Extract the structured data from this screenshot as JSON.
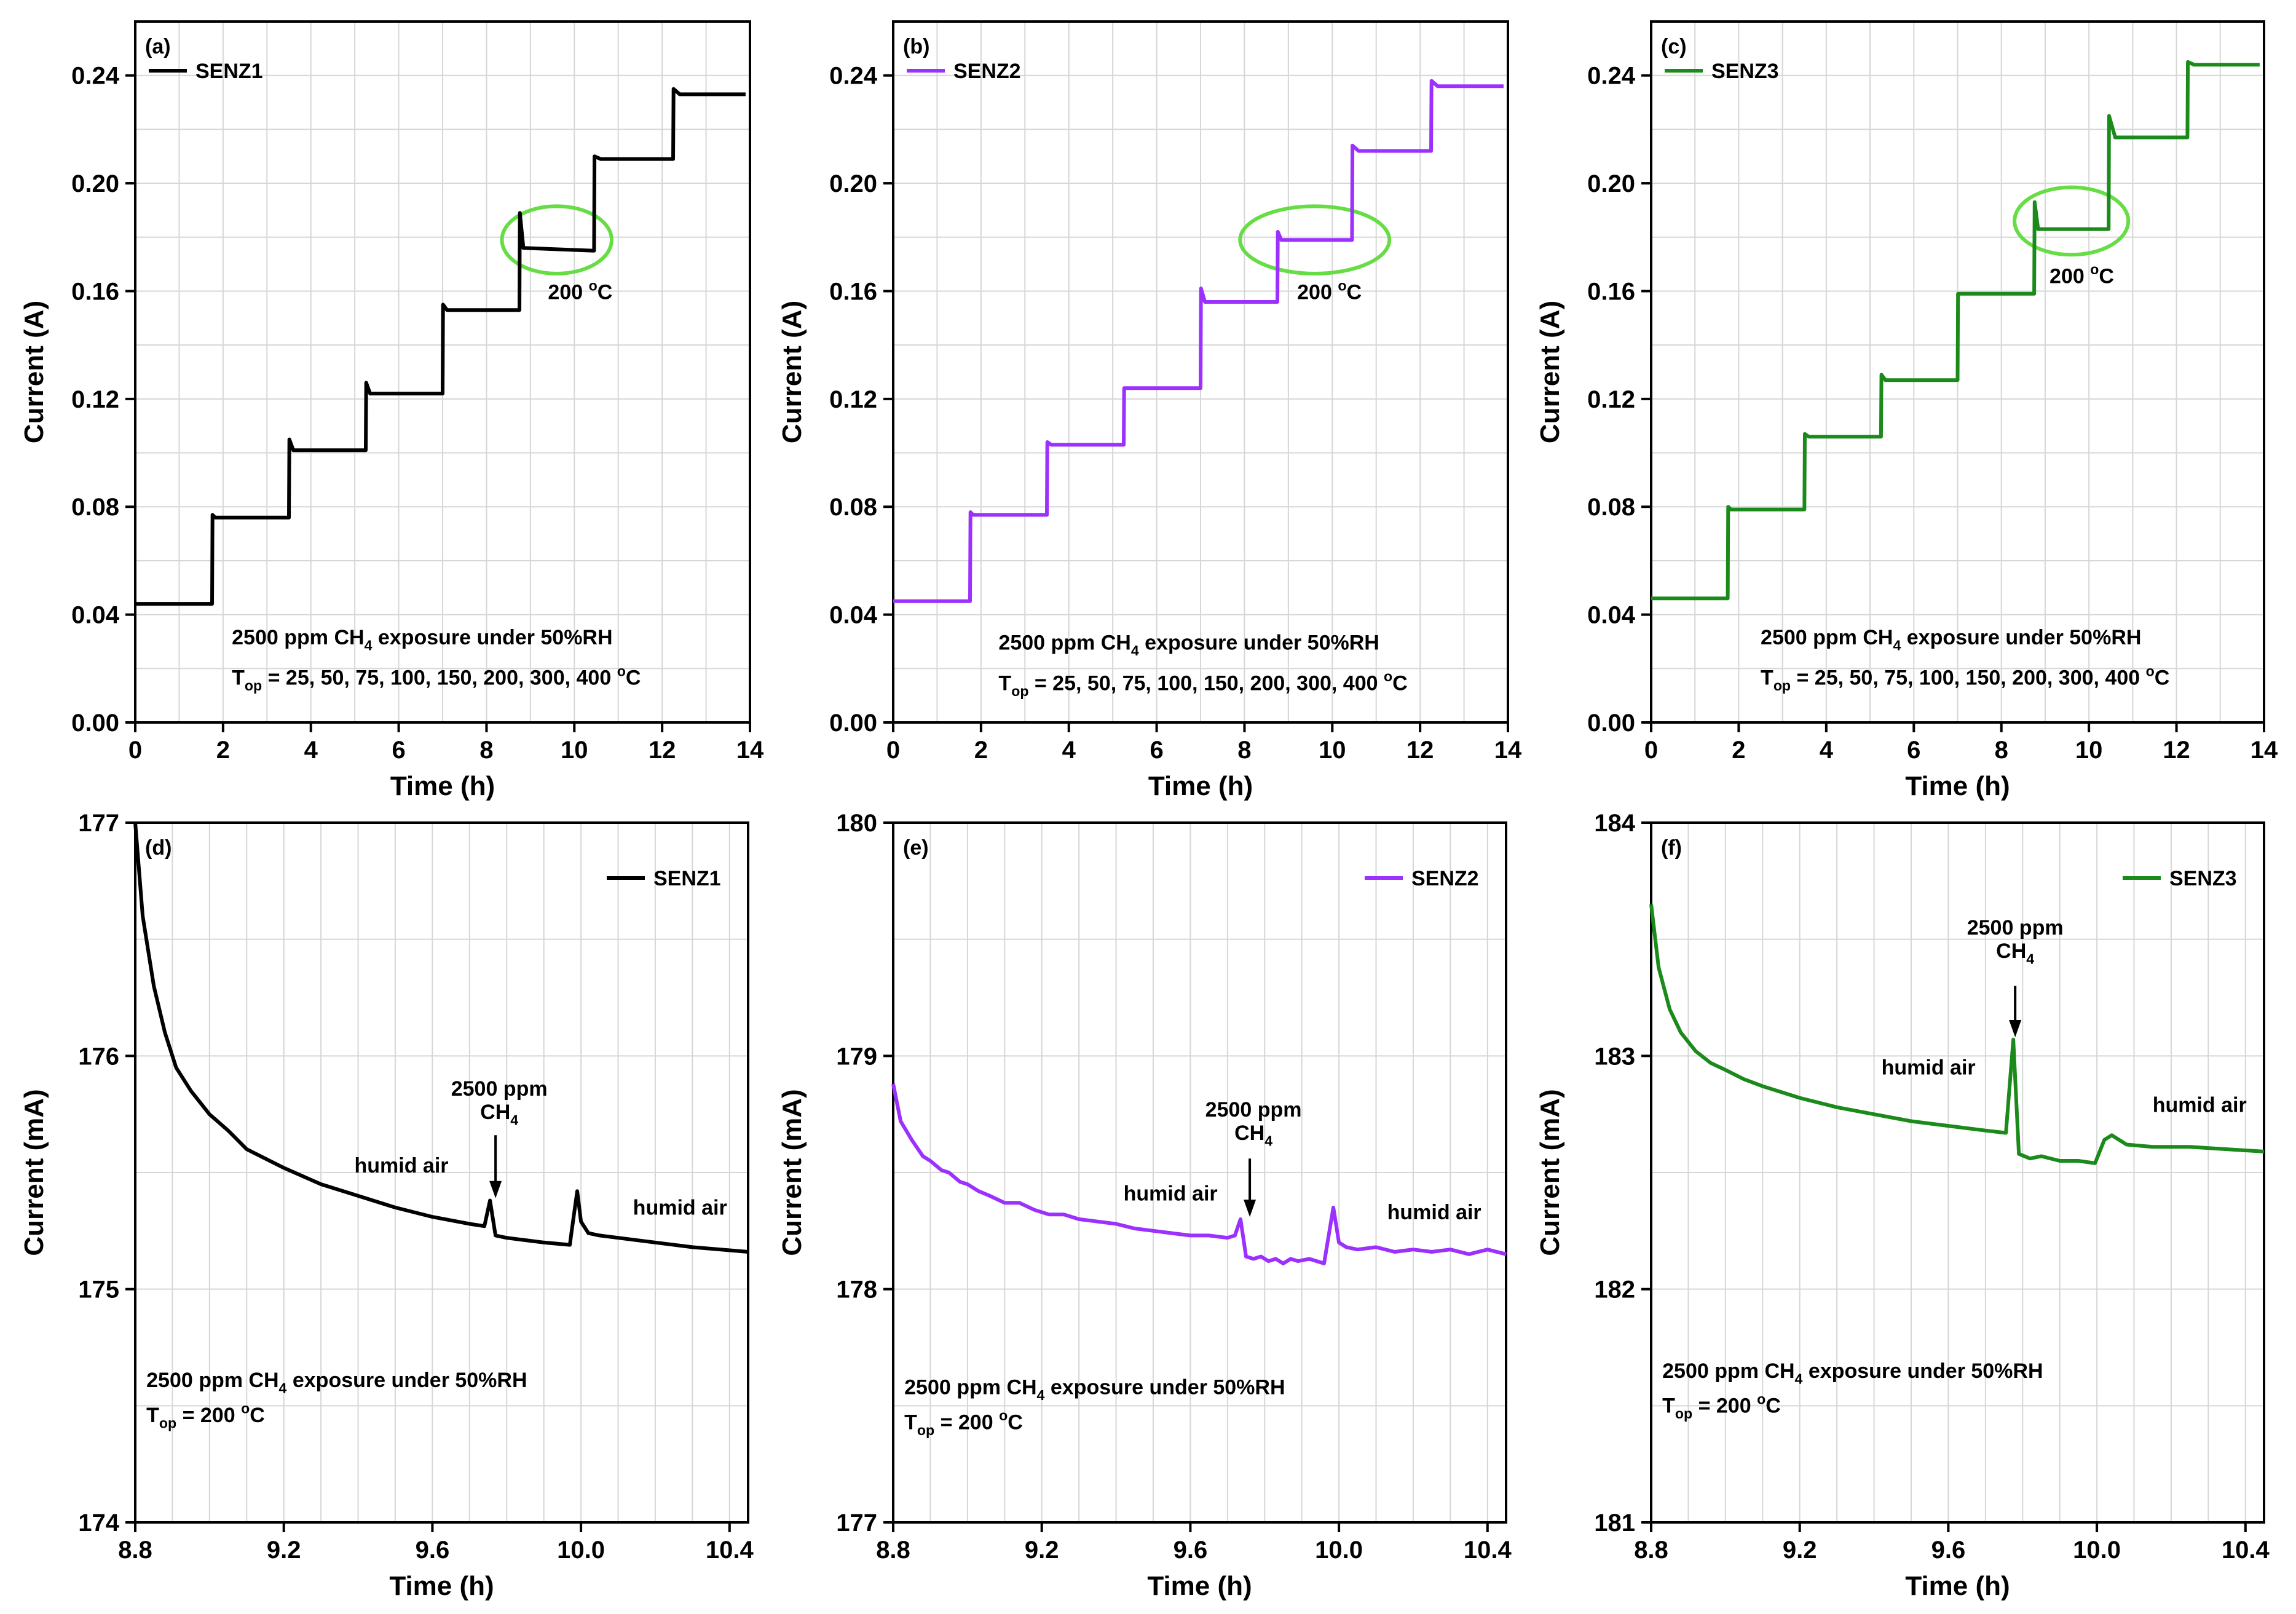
{
  "chart_data": [
    {
      "type": "line",
      "panel_label": "(a)",
      "xlabel": "Time (h)",
      "ylabel": "Current (A)",
      "xlim": [
        0,
        14
      ],
      "ylim": [
        0,
        0.26
      ],
      "xticks": [
        0,
        2,
        4,
        6,
        8,
        10,
        12,
        14
      ],
      "xtick_labels": [
        "0",
        "2",
        "4",
        "6",
        "8",
        "10",
        "12",
        "14"
      ],
      "yticks": [
        0,
        0.04,
        0.08,
        0.12,
        0.16,
        0.2,
        0.24
      ],
      "ytick_labels": [
        "0.00",
        "0.04",
        "0.08",
        "0.12",
        "0.16",
        "0.20",
        "0.24"
      ],
      "grid": true,
      "legend_position": "top-left",
      "series": [
        {
          "name": "SENZ1",
          "color": "#000000",
          "x": [
            0,
            1.75,
            1.76,
            1.82,
            3.5,
            3.51,
            3.6,
            5.25,
            5.26,
            5.35,
            7.0,
            7.01,
            7.1,
            8.75,
            8.76,
            8.84,
            10.45,
            10.46,
            10.6,
            12.25,
            12.26,
            12.4,
            13.9
          ],
          "y": [
            0.044,
            0.044,
            0.077,
            0.076,
            0.076,
            0.105,
            0.101,
            0.101,
            0.126,
            0.122,
            0.122,
            0.155,
            0.153,
            0.153,
            0.189,
            0.176,
            0.175,
            0.21,
            0.209,
            0.209,
            0.235,
            0.233,
            0.233
          ]
        }
      ],
      "annotations": [
        {
          "text": "200 °C",
          "x": 9.4,
          "y": 0.157
        },
        {
          "text": "2500 ppm CH4 exposure under 50%RH",
          "x": 2.2,
          "y": 0.029
        },
        {
          "text": "Top = 25, 50, 75, 100, 150, 200, 300, 400 °C",
          "x": 2.2,
          "y": 0.014
        }
      ],
      "highlight_ellipse": {
        "cx": 9.6,
        "cy": 0.179,
        "rx": 1.25,
        "ry": 0.0125,
        "color": "#66dd44"
      }
    },
    {
      "type": "line",
      "panel_label": "(b)",
      "xlabel": "Time (h)",
      "ylabel": "Current (A)",
      "xlim": [
        0,
        14
      ],
      "ylim": [
        0,
        0.26
      ],
      "xticks": [
        0,
        2,
        4,
        6,
        8,
        10,
        12,
        14
      ],
      "xtick_labels": [
        "0",
        "2",
        "4",
        "6",
        "8",
        "10",
        "12",
        "14"
      ],
      "yticks": [
        0,
        0.04,
        0.08,
        0.12,
        0.16,
        0.2,
        0.24
      ],
      "ytick_labels": [
        "0.00",
        "0.04",
        "0.08",
        "0.12",
        "0.16",
        "0.20",
        "0.24"
      ],
      "grid": true,
      "legend_position": "top-left",
      "series": [
        {
          "name": "SENZ2",
          "color": "#9b30ff",
          "x": [
            0,
            1.75,
            1.76,
            1.82,
            3.5,
            3.51,
            3.6,
            5.25,
            5.26,
            5.35,
            7.0,
            7.01,
            7.1,
            8.75,
            8.76,
            8.84,
            10.45,
            10.46,
            10.6,
            12.25,
            12.26,
            12.4,
            13.9
          ],
          "y": [
            0.045,
            0.045,
            0.078,
            0.077,
            0.077,
            0.104,
            0.103,
            0.103,
            0.124,
            0.124,
            0.124,
            0.161,
            0.156,
            0.156,
            0.182,
            0.179,
            0.179,
            0.214,
            0.212,
            0.212,
            0.238,
            0.236,
            0.236
          ]
        }
      ],
      "annotations": [
        {
          "text": "200 °C",
          "x": 9.2,
          "y": 0.157
        },
        {
          "text": "2500 ppm CH4 exposure under 50%RH",
          "x": 2.4,
          "y": 0.027
        },
        {
          "text": "Top = 25, 50, 75, 100, 150, 200, 300, 400 °C",
          "x": 2.4,
          "y": 0.012
        }
      ],
      "highlight_ellipse": {
        "cx": 9.6,
        "cy": 0.179,
        "rx": 1.7,
        "ry": 0.0125,
        "color": "#66dd44"
      }
    },
    {
      "type": "line",
      "panel_label": "(c)",
      "xlabel": "Time (h)",
      "ylabel": "Current (A)",
      "xlim": [
        0,
        14
      ],
      "ylim": [
        0,
        0.26
      ],
      "xticks": [
        0,
        2,
        4,
        6,
        8,
        10,
        12,
        14
      ],
      "xtick_labels": [
        "0",
        "2",
        "4",
        "6",
        "8",
        "10",
        "12",
        "14"
      ],
      "yticks": [
        0,
        0.04,
        0.08,
        0.12,
        0.16,
        0.2,
        0.24
      ],
      "ytick_labels": [
        "0.00",
        "0.04",
        "0.08",
        "0.12",
        "0.16",
        "0.20",
        "0.24"
      ],
      "grid": true,
      "legend_position": "top-left",
      "series": [
        {
          "name": "SENZ3",
          "color": "#1a8a1a",
          "x": [
            0,
            1.75,
            1.76,
            1.82,
            3.5,
            3.51,
            3.6,
            5.25,
            5.26,
            5.35,
            7.0,
            7.01,
            7.1,
            8.75,
            8.76,
            8.84,
            10.45,
            10.46,
            10.6,
            12.25,
            12.26,
            12.4,
            13.9
          ],
          "y": [
            0.046,
            0.046,
            0.08,
            0.079,
            0.079,
            0.107,
            0.106,
            0.106,
            0.129,
            0.127,
            0.127,
            0.159,
            0.159,
            0.159,
            0.193,
            0.183,
            0.183,
            0.225,
            0.217,
            0.217,
            0.245,
            0.244,
            0.244
          ]
        }
      ],
      "annotations": [
        {
          "text": "200 °C",
          "x": 9.1,
          "y": 0.163
        },
        {
          "text": "2500 ppm CH4 exposure under 50%RH",
          "x": 2.5,
          "y": 0.029
        },
        {
          "text": "Top = 25, 50, 75, 100, 150, 200, 300, 400 °C",
          "x": 2.5,
          "y": 0.014
        }
      ],
      "highlight_ellipse": {
        "cx": 9.6,
        "cy": 0.186,
        "rx": 1.3,
        "ry": 0.0125,
        "color": "#66dd44"
      }
    },
    {
      "type": "line",
      "panel_label": "(d)",
      "xlabel": "Time (h)",
      "ylabel": "Current (mA)",
      "xlim": [
        8.8,
        10.45
      ],
      "ylim": [
        174,
        177
      ],
      "xticks": [
        8.8,
        9.2,
        9.6,
        10.0,
        10.4
      ],
      "xtick_labels": [
        "8.8",
        "9.2",
        "9.6",
        "10.0",
        "10.4"
      ],
      "yticks": [
        174,
        175,
        176,
        177
      ],
      "ytick_labels": [
        "174",
        "175",
        "176",
        "177"
      ],
      "grid": true,
      "legend_position": "top-right",
      "series": [
        {
          "name": "SENZ1",
          "color": "#000000",
          "x": [
            8.8,
            8.82,
            8.85,
            8.88,
            8.91,
            8.95,
            9.0,
            9.05,
            9.1,
            9.2,
            9.3,
            9.4,
            9.5,
            9.6,
            9.7,
            9.74,
            9.755,
            9.77,
            9.8,
            9.85,
            9.9,
            9.97,
            9.975,
            9.99,
            10.0,
            10.02,
            10.05,
            10.1,
            10.2,
            10.3,
            10.45
          ],
          "y": [
            177.0,
            176.6,
            176.3,
            176.1,
            175.95,
            175.85,
            175.75,
            175.68,
            175.6,
            175.52,
            175.45,
            175.4,
            175.35,
            175.31,
            175.28,
            175.27,
            175.38,
            175.23,
            175.22,
            175.21,
            175.2,
            175.19,
            175.25,
            175.42,
            175.29,
            175.24,
            175.23,
            175.22,
            175.2,
            175.18,
            175.16
          ]
        }
      ],
      "annotations": [
        {
          "text": "humid air",
          "x": 9.39,
          "y": 175.5
        },
        {
          "text": "humid air",
          "x": 10.14,
          "y": 175.32
        },
        {
          "text": "2500 ppm",
          "x": 9.78,
          "y": 175.83
        },
        {
          "text": "CH4",
          "x": 9.78,
          "y": 175.73
        },
        {
          "text": "2500 ppm CH4 exposure under 50%RH",
          "x": 8.83,
          "y": 174.58
        },
        {
          "text": "Top = 200 °C",
          "x": 8.83,
          "y": 174.43
        }
      ],
      "arrows": [
        {
          "x": 9.77,
          "y_from": 175.66,
          "y_to": 175.39
        }
      ]
    },
    {
      "type": "line",
      "panel_label": "(e)",
      "xlabel": "Time (h)",
      "ylabel": "Current (mA)",
      "xlim": [
        8.8,
        10.45
      ],
      "ylim": [
        177,
        180
      ],
      "xticks": [
        8.8,
        9.2,
        9.6,
        10.0,
        10.4
      ],
      "xtick_labels": [
        "8.8",
        "9.2",
        "9.6",
        "10.0",
        "10.4"
      ],
      "yticks": [
        177,
        178,
        179,
        180
      ],
      "ytick_labels": [
        "177",
        "178",
        "179",
        "180"
      ],
      "grid": true,
      "legend_position": "top-right",
      "series": [
        {
          "name": "SENZ2",
          "color": "#9b30ff",
          "x": [
            8.8,
            8.82,
            8.85,
            8.88,
            8.9,
            8.93,
            8.95,
            8.98,
            9.0,
            9.03,
            9.06,
            9.1,
            9.14,
            9.18,
            9.22,
            9.26,
            9.3,
            9.35,
            9.4,
            9.45,
            9.5,
            9.55,
            9.6,
            9.65,
            9.7,
            9.72,
            9.735,
            9.75,
            9.77,
            9.79,
            9.81,
            9.83,
            9.85,
            9.87,
            9.89,
            9.92,
            9.96,
            9.985,
            10.0,
            10.02,
            10.05,
            10.1,
            10.15,
            10.2,
            10.25,
            10.3,
            10.35,
            10.4,
            10.45
          ],
          "y": [
            178.88,
            178.72,
            178.64,
            178.57,
            178.55,
            178.51,
            178.5,
            178.46,
            178.45,
            178.42,
            178.4,
            178.37,
            178.37,
            178.34,
            178.32,
            178.32,
            178.3,
            178.29,
            178.28,
            178.26,
            178.25,
            178.24,
            178.23,
            178.23,
            178.22,
            178.23,
            178.3,
            178.14,
            178.13,
            178.14,
            178.12,
            178.13,
            178.11,
            178.13,
            178.12,
            178.13,
            178.11,
            178.35,
            178.2,
            178.18,
            178.17,
            178.18,
            178.16,
            178.17,
            178.16,
            178.17,
            178.15,
            178.17,
            178.15
          ]
        }
      ],
      "annotations": [
        {
          "text": "humid air",
          "x": 9.42,
          "y": 178.38
        },
        {
          "text": "humid air",
          "x": 10.13,
          "y": 178.3
        },
        {
          "text": "2500 ppm",
          "x": 9.77,
          "y": 178.74
        },
        {
          "text": "CH4",
          "x": 9.77,
          "y": 178.64
        },
        {
          "text": "2500 ppm CH4 exposure under 50%RH",
          "x": 8.83,
          "y": 177.55
        },
        {
          "text": "Top = 200 °C",
          "x": 8.83,
          "y": 177.4
        }
      ],
      "arrows": [
        {
          "x": 9.76,
          "y_from": 178.56,
          "y_to": 178.31
        }
      ]
    },
    {
      "type": "line",
      "panel_label": "(f)",
      "xlabel": "Time (h)",
      "ylabel": "Current (mA)",
      "xlim": [
        8.8,
        10.45
      ],
      "ylim": [
        181,
        184
      ],
      "xticks": [
        8.8,
        9.2,
        9.6,
        10.0,
        10.4
      ],
      "xtick_labels": [
        "8.8",
        "9.2",
        "9.6",
        "10.0",
        "10.4"
      ],
      "yticks": [
        181,
        182,
        183,
        184
      ],
      "ytick_labels": [
        "181",
        "182",
        "183",
        "184"
      ],
      "grid": true,
      "legend_position": "top-right",
      "series": [
        {
          "name": "SENZ3",
          "color": "#1a8a1a",
          "x": [
            8.8,
            8.82,
            8.85,
            8.88,
            8.92,
            8.96,
            9.0,
            9.05,
            9.1,
            9.2,
            9.3,
            9.4,
            9.5,
            9.6,
            9.7,
            9.755,
            9.775,
            9.79,
            9.82,
            9.85,
            9.9,
            9.95,
            9.995,
            10.02,
            10.04,
            10.08,
            10.15,
            10.25,
            10.35,
            10.45
          ],
          "y": [
            183.65,
            183.38,
            183.2,
            183.1,
            183.02,
            182.97,
            182.94,
            182.9,
            182.87,
            182.82,
            182.78,
            182.75,
            182.72,
            182.7,
            182.68,
            182.67,
            183.07,
            182.58,
            182.56,
            182.57,
            182.55,
            182.55,
            182.54,
            182.64,
            182.66,
            182.62,
            182.61,
            182.61,
            182.6,
            182.59
          ]
        }
      ],
      "annotations": [
        {
          "text": "humid air",
          "x": 9.42,
          "y": 182.92
        },
        {
          "text": "humid air",
          "x": 10.15,
          "y": 182.76
        },
        {
          "text": "2500 ppm",
          "x": 9.78,
          "y": 183.52
        },
        {
          "text": "CH4",
          "x": 9.78,
          "y": 183.42
        },
        {
          "text": "2500 ppm CH4 exposure under 50%RH",
          "x": 8.83,
          "y": 181.62
        },
        {
          "text": "Top = 200 °C",
          "x": 8.83,
          "y": 181.47
        }
      ],
      "arrows": [
        {
          "x": 9.78,
          "y_from": 183.3,
          "y_to": 183.08
        }
      ]
    }
  ]
}
